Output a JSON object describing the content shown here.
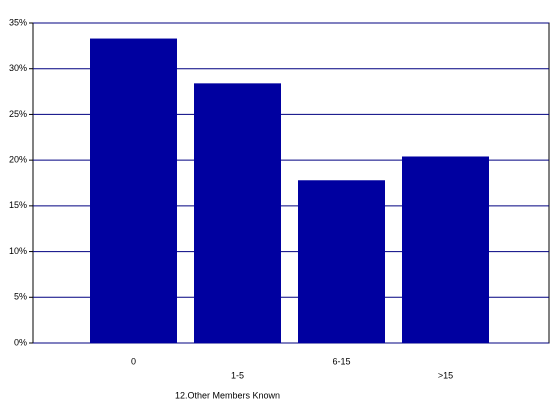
{
  "chart_data": {
    "type": "bar",
    "x_label": "12.Other Members Known",
    "categories": [
      "0",
      "1-5",
      "6-15",
      ">15"
    ],
    "values": [
      33.3,
      28.4,
      17.8,
      20.4
    ],
    "color": "#0000a0",
    "ylim": [
      0,
      35
    ],
    "yticks": [
      {
        "value": 0,
        "label": "0%"
      },
      {
        "value": 5,
        "label": "5%"
      },
      {
        "value": 10,
        "label": "10%"
      },
      {
        "value": 15,
        "label": "15%"
      },
      {
        "value": 20,
        "label": "20%"
      },
      {
        "value": 25,
        "label": "25%"
      },
      {
        "value": 30,
        "label": "30%"
      },
      {
        "value": 35,
        "label": "35%"
      }
    ],
    "grid": true
  }
}
